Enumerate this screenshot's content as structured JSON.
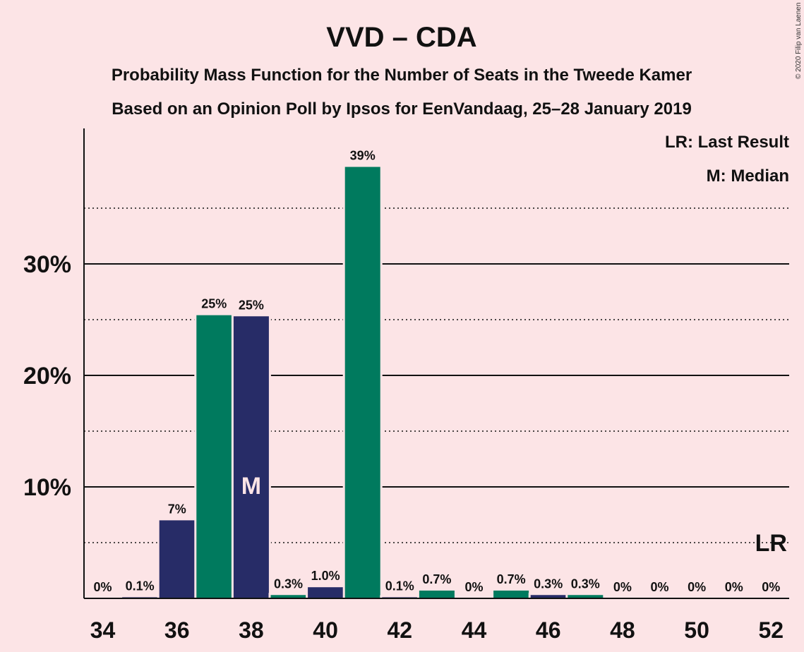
{
  "chart_data": {
    "type": "bar",
    "title": "VVD – CDA",
    "subtitle_1": "Probability Mass Function for the Number of Seats in the Tweede Kamer",
    "subtitle_2": "Based on an Opinion Poll by Ipsos for EenVandaag, 25–28 January 2019",
    "copyright": "© 2020 Filip van Laenen",
    "legend": [
      "LR: Last Result",
      "M: Median"
    ],
    "ylim": [
      0,
      42
    ],
    "yticks": [
      {
        "value": 10,
        "label": "10%"
      },
      {
        "value": 20,
        "label": "20%"
      },
      {
        "value": 30,
        "label": "30%"
      }
    ],
    "solid_gridlines": [
      10,
      20,
      30
    ],
    "dotted_gridlines": [
      5,
      15,
      25,
      35
    ],
    "xticks": [
      34,
      36,
      38,
      40,
      42,
      44,
      46,
      48,
      50,
      52
    ],
    "seats": [
      34,
      35,
      36,
      37,
      38,
      39,
      40,
      41,
      42,
      43,
      44,
      45,
      46,
      47,
      48,
      49,
      50,
      51,
      52
    ],
    "values": [
      0,
      0.1,
      7,
      25.4,
      25.3,
      0.3,
      1.0,
      38.7,
      0.1,
      0.7,
      0,
      0.7,
      0.3,
      0.3,
      0,
      0,
      0,
      0,
      0
    ],
    "labels": [
      "0%",
      "0.1%",
      "7%",
      "25%",
      "25%",
      "0.3%",
      "1.0%",
      "39%",
      "0.1%",
      "0.7%",
      "0%",
      "0.7%",
      "0.3%",
      "0.3%",
      "0%",
      "0%",
      "0%",
      "0%",
      "0%"
    ],
    "bar_party": [
      "VVD",
      "VVD",
      "VVD",
      "CDA",
      "VVD",
      "CDA",
      "VVD",
      "CDA",
      "VVD",
      "CDA",
      "VVD",
      "CDA",
      "VVD",
      "CDA",
      "VVD",
      "CDA",
      "VVD",
      "CDA",
      "VVD"
    ],
    "colors": {
      "VVD": "#272c67",
      "CDA": "#007a5e",
      "grid": "#111111",
      "background": "#fce4e6"
    },
    "median_seat": 38,
    "median_marker": "M",
    "last_result_seat": 52,
    "last_result_marker": "LR"
  }
}
